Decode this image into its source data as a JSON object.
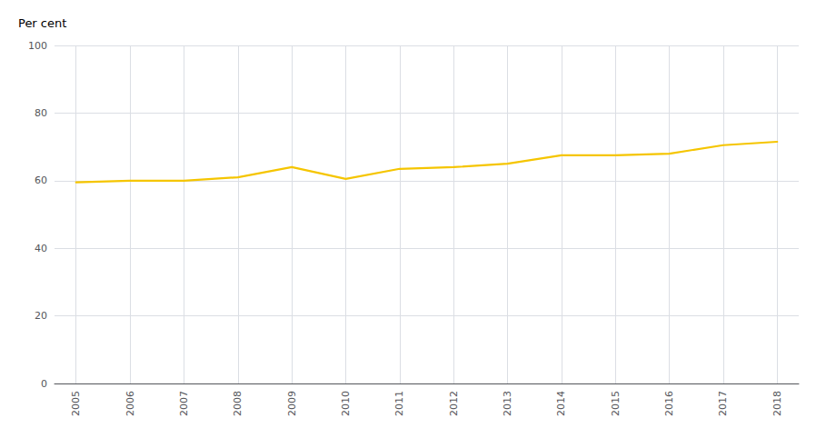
{
  "chart_data": {
    "type": "line",
    "x": [
      2005,
      2006,
      2007,
      2008,
      2009,
      2010,
      2011,
      2012,
      2013,
      2014,
      2015,
      2016,
      2017,
      2018
    ],
    "values": [
      59.5,
      60.0,
      60.0,
      61.0,
      64.0,
      60.5,
      63.5,
      64.0,
      65.0,
      67.5,
      67.5,
      68.0,
      70.5,
      71.5
    ],
    "color": "#F5C500",
    "ylabel": "Per cent",
    "xlim": [
      2004.6,
      2018.4
    ],
    "xticks": [
      2005,
      2006,
      2007,
      2008,
      2009,
      2010,
      2011,
      2012,
      2013,
      2014,
      2015,
      2016,
      2017,
      2018
    ],
    "ylim": [
      0,
      100
    ],
    "yticks": [
      0,
      20,
      40,
      60,
      80,
      100
    ],
    "grid": true
  }
}
